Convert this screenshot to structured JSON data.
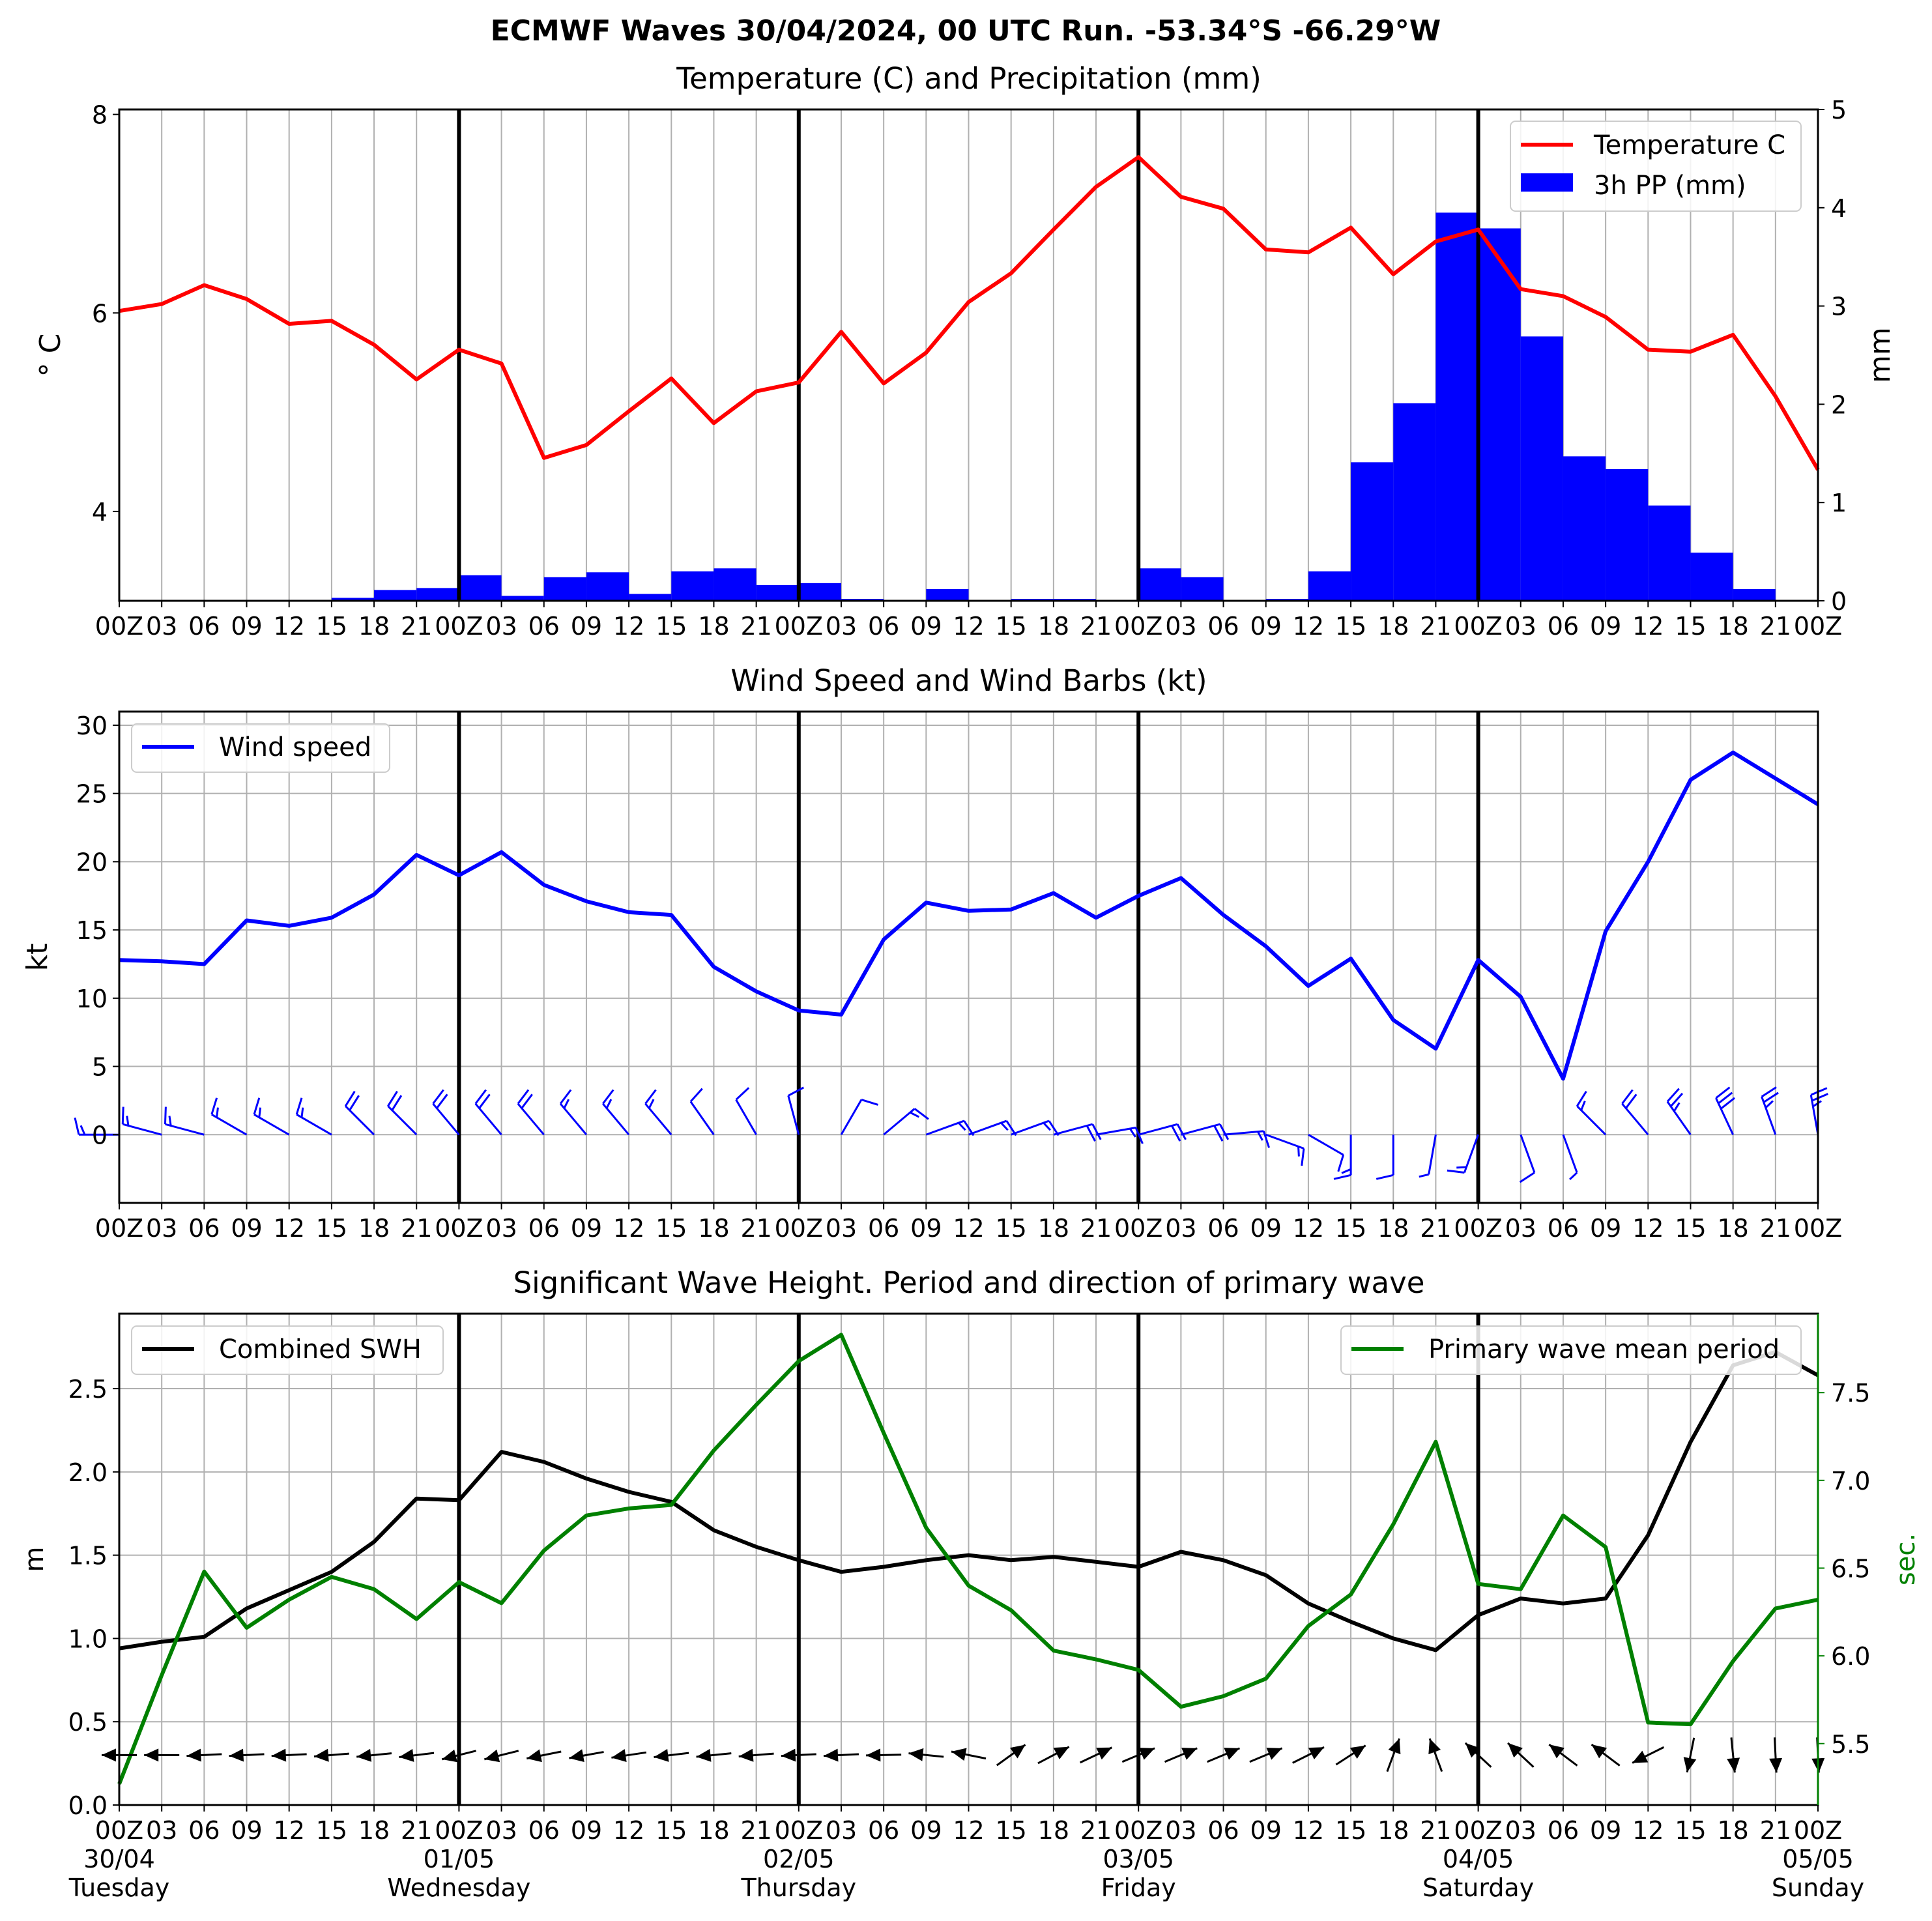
{
  "suptitle": "ECMWF Waves 30/04/2024, 00 UTC Run. -53.34°S -66.29°W",
  "colors": {
    "temperature": "#ff0000",
    "precip": "#0000ff",
    "wind": "#0000ff",
    "swh": "#000000",
    "period": "#008000",
    "grid": "#b0b0b0",
    "day_line": "#000000"
  },
  "x_hours": [
    0,
    3,
    6,
    9,
    12,
    15,
    18,
    21,
    24,
    27,
    30,
    33,
    36,
    39,
    42,
    45,
    48,
    51,
    54,
    57,
    60,
    63,
    66,
    69,
    72,
    75,
    78,
    81,
    84,
    87,
    90,
    93,
    96,
    99,
    102,
    105,
    108,
    111,
    114,
    117,
    120
  ],
  "hour_tick_labels": [
    "00Z",
    "03",
    "06",
    "09",
    "12",
    "15",
    "18",
    "21",
    "00Z",
    "03",
    "06",
    "09",
    "12",
    "15",
    "18",
    "21",
    "00Z",
    "03",
    "06",
    "09",
    "12",
    "15",
    "18",
    "21",
    "00Z",
    "03",
    "06",
    "09",
    "12",
    "15",
    "18",
    "21",
    "00Z",
    "03",
    "06",
    "09",
    "12",
    "15",
    "18",
    "21",
    "00Z"
  ],
  "bottom_tick_labels": [
    "00Z",
    "03",
    "06",
    "09",
    "12",
    "15",
    "18",
    "21",
    "00Z",
    "03",
    "06",
    "09",
    "12",
    "15",
    "18",
    "21",
    "00Z",
    "03",
    "06",
    "09",
    "12",
    "15",
    "18",
    "21",
    "00Z",
    "03",
    "06",
    "09",
    "12",
    "15",
    "18",
    "21",
    "00Z",
    "03",
    "06",
    "09",
    "12",
    "15",
    "18",
    "21",
    "00Z"
  ],
  "day_markers": [
    {
      "hour": 0,
      "date": "30/04",
      "weekday": "Tuesday"
    },
    {
      "hour": 24,
      "date": "01/05",
      "weekday": "Wednesday"
    },
    {
      "hour": 48,
      "date": "02/05",
      "weekday": "Thursday"
    },
    {
      "hour": 72,
      "date": "03/05",
      "weekday": "Friday"
    },
    {
      "hour": 96,
      "date": "04/05",
      "weekday": "Saturday"
    },
    {
      "hour": 120,
      "date": "05/05",
      "weekday": "Sunday"
    }
  ],
  "chart_data": [
    {
      "type": "line",
      "title": "Temperature (C) and Precipitation (mm)",
      "ylabel": "$^\\circ$C",
      "ylabel_display": "° C",
      "ylim": [
        3.1,
        8.05
      ],
      "yticks": [
        4,
        6,
        8
      ],
      "y2label": "mm",
      "y2lim": [
        0,
        5
      ],
      "y2ticks": [
        0,
        1,
        2,
        3,
        4,
        5
      ],
      "legend": {
        "placement": "top-right",
        "entries": [
          "Temperature C",
          "3h PP (mm)"
        ]
      },
      "grid": true,
      "series": [
        {
          "name": "Temperature C",
          "axis": "left",
          "kind": "line",
          "values": [
            6.02,
            6.09,
            6.28,
            6.14,
            5.89,
            5.92,
            5.68,
            5.33,
            5.63,
            5.49,
            4.54,
            4.67,
            5.01,
            5.34,
            4.89,
            5.21,
            5.3,
            5.81,
            5.29,
            5.6,
            6.11,
            6.4,
            6.84,
            7.27,
            7.57,
            7.17,
            7.05,
            6.64,
            6.61,
            6.86,
            6.39,
            6.72,
            6.84,
            6.24,
            6.17,
            5.96,
            5.63,
            5.61,
            5.78,
            5.16,
            4.42
          ]
        },
        {
          "name": "3h PP (mm)",
          "axis": "right",
          "kind": "bar",
          "values": [
            0,
            0,
            0,
            0.01,
            0.01,
            0.03,
            0.11,
            0.13,
            0.26,
            0.05,
            0.24,
            0.29,
            0.07,
            0.3,
            0.33,
            0.16,
            0.18,
            0.02,
            0,
            0.12,
            0,
            0.02,
            0.02,
            0,
            0.33,
            0.24,
            0,
            0.02,
            0.3,
            1.41,
            2.01,
            3.95,
            3.79,
            2.69,
            1.47,
            1.34,
            0.97,
            0.49,
            0.12,
            0,
            0
          ]
        }
      ]
    },
    {
      "type": "line",
      "title": "Wind Speed and Wind Barbs (kt)",
      "ylabel": "kt",
      "ylim": [
        -5,
        31
      ],
      "yticks": [
        0,
        5,
        10,
        15,
        20,
        25,
        30
      ],
      "legend": {
        "placement": "top-left",
        "entries": [
          "Wind speed"
        ]
      },
      "grid": true,
      "series": [
        {
          "name": "Wind speed",
          "values": [
            12.8,
            12.7,
            12.5,
            15.7,
            15.3,
            15.9,
            17.6,
            20.5,
            19.0,
            20.7,
            18.3,
            17.1,
            16.3,
            16.1,
            12.3,
            10.5,
            9.1,
            8.8,
            14.3,
            17.0,
            16.4,
            16.5,
            17.7,
            15.9,
            17.5,
            18.8,
            16.1,
            13.8,
            10.9,
            12.9,
            8.4,
            6.3,
            12.8,
            10.1,
            4.1,
            14.9,
            20.0,
            26.0,
            28.0,
            26.1,
            24.2
          ]
        }
      ],
      "barb_direction_deg": [
        270,
        285,
        285,
        300,
        300,
        300,
        315,
        315,
        320,
        320,
        320,
        320,
        320,
        320,
        325,
        330,
        345,
        30,
        50,
        70,
        70,
        70,
        75,
        80,
        75,
        75,
        85,
        110,
        120,
        180,
        180,
        190,
        200,
        160,
        160,
        315,
        320,
        325,
        335,
        340,
        350
      ]
    },
    {
      "type": "line",
      "title": "Significant Wave Height. Period and direction of primary wave",
      "ylabel": "m",
      "ylim": [
        0,
        2.95
      ],
      "yticks": [
        0.0,
        0.5,
        1.0,
        1.5,
        2.0,
        2.5
      ],
      "y2label": "sec.",
      "y2lim": [
        5.15,
        7.95
      ],
      "y2ticks": [
        5.5,
        6.0,
        6.5,
        7.0,
        7.5
      ],
      "legend": {
        "placement": "top-left / top-right",
        "entries": [
          "Combined SWH",
          "Primary wave mean period"
        ]
      },
      "grid": true,
      "series": [
        {
          "name": "Combined SWH",
          "axis": "left",
          "values": [
            0.94,
            0.98,
            1.01,
            1.18,
            1.29,
            1.4,
            1.58,
            1.84,
            1.83,
            2.12,
            2.06,
            1.96,
            1.88,
            1.82,
            1.65,
            1.55,
            1.47,
            1.4,
            1.43,
            1.47,
            1.5,
            1.47,
            1.49,
            1.46,
            1.43,
            1.52,
            1.47,
            1.38,
            1.21,
            1.1,
            1.0,
            0.93,
            1.14,
            1.24,
            1.21,
            1.24,
            1.62,
            2.18,
            2.64,
            2.72,
            2.58
          ]
        },
        {
          "name": "Primary wave mean period",
          "axis": "right",
          "values": [
            5.27,
            5.89,
            6.48,
            6.16,
            6.32,
            6.45,
            6.38,
            6.21,
            6.42,
            6.3,
            6.6,
            6.8,
            6.84,
            6.86,
            7.17,
            7.43,
            7.68,
            7.83,
            7.27,
            6.73,
            6.4,
            6.26,
            6.03,
            5.98,
            5.92,
            5.71,
            5.77,
            5.87,
            6.17,
            6.35,
            6.75,
            7.22,
            6.41,
            6.38,
            6.8,
            6.62,
            5.62,
            5.61,
            5.97,
            6.27,
            6.32
          ]
        }
      ],
      "wave_direction_deg": [
        90,
        90,
        95,
        95,
        95,
        100,
        100,
        105,
        115,
        115,
        110,
        110,
        105,
        105,
        105,
        100,
        95,
        95,
        95,
        95,
        95,
        null,
        null,
        null,
        null,
        null,
        null,
        null,
        null,
        null,
        null,
        null,
        null,
        null,
        null,
        null,
        null,
        null,
        null,
        null,
        null
      ],
      "wave_arrows": [
        {
          "h": 0,
          "dx": -1,
          "dy": 0
        },
        {
          "h": 3,
          "dx": -1,
          "dy": 0
        },
        {
          "h": 6,
          "dx": -1,
          "dy": 0.05
        },
        {
          "h": 9,
          "dx": -1,
          "dy": 0.05
        },
        {
          "h": 12,
          "dx": -1,
          "dy": 0.05
        },
        {
          "h": 15,
          "dx": -1,
          "dy": 0.08
        },
        {
          "h": 18,
          "dx": -1,
          "dy": 0.1
        },
        {
          "h": 21,
          "dx": -1,
          "dy": 0.12
        },
        {
          "h": 24,
          "dx": -1,
          "dy": 0.25
        },
        {
          "h": 27,
          "dx": -1,
          "dy": 0.25
        },
        {
          "h": 30,
          "dx": -1,
          "dy": 0.2
        },
        {
          "h": 33,
          "dx": -1,
          "dy": 0.18
        },
        {
          "h": 36,
          "dx": -1,
          "dy": 0.15
        },
        {
          "h": 39,
          "dx": -1,
          "dy": 0.12
        },
        {
          "h": 42,
          "dx": -1,
          "dy": 0.1
        },
        {
          "h": 45,
          "dx": -1,
          "dy": 0.08
        },
        {
          "h": 48,
          "dx": -1,
          "dy": 0.05
        },
        {
          "h": 51,
          "dx": -1,
          "dy": 0.05
        },
        {
          "h": 54,
          "dx": -1,
          "dy": 0.02
        },
        {
          "h": 57,
          "dx": -1,
          "dy": -0.1
        },
        {
          "h": 60,
          "dx": -1,
          "dy": -0.2
        },
        {
          "h": 63,
          "dx": 0.9,
          "dy": -0.65
        },
        {
          "h": 66,
          "dx": 0.95,
          "dy": -0.5
        },
        {
          "h": 69,
          "dx": 0.95,
          "dy": -0.45
        },
        {
          "h": 72,
          "dx": 0.95,
          "dy": -0.4
        },
        {
          "h": 75,
          "dx": 0.95,
          "dy": -0.4
        },
        {
          "h": 78,
          "dx": 0.95,
          "dy": -0.4
        },
        {
          "h": 81,
          "dx": 0.95,
          "dy": -0.4
        },
        {
          "h": 84,
          "dx": 0.9,
          "dy": -0.45
        },
        {
          "h": 87,
          "dx": 0.85,
          "dy": -0.55
        },
        {
          "h": 90,
          "dx": 0.35,
          "dy": -0.95
        },
        {
          "h": 93,
          "dx": -0.35,
          "dy": -0.95
        },
        {
          "h": 96,
          "dx": -0.75,
          "dy": -0.7
        },
        {
          "h": 99,
          "dx": -0.75,
          "dy": -0.7
        },
        {
          "h": 102,
          "dx": -0.8,
          "dy": -0.6
        },
        {
          "h": 105,
          "dx": -0.8,
          "dy": -0.6
        },
        {
          "h": 108,
          "dx": -0.9,
          "dy": 0.45
        },
        {
          "h": 111,
          "dx": -0.2,
          "dy": 1
        },
        {
          "h": 114,
          "dx": 0.1,
          "dy": 1
        },
        {
          "h": 117,
          "dx": 0.05,
          "dy": 1
        },
        {
          "h": 120,
          "dx": 0.05,
          "dy": 1
        }
      ]
    }
  ]
}
